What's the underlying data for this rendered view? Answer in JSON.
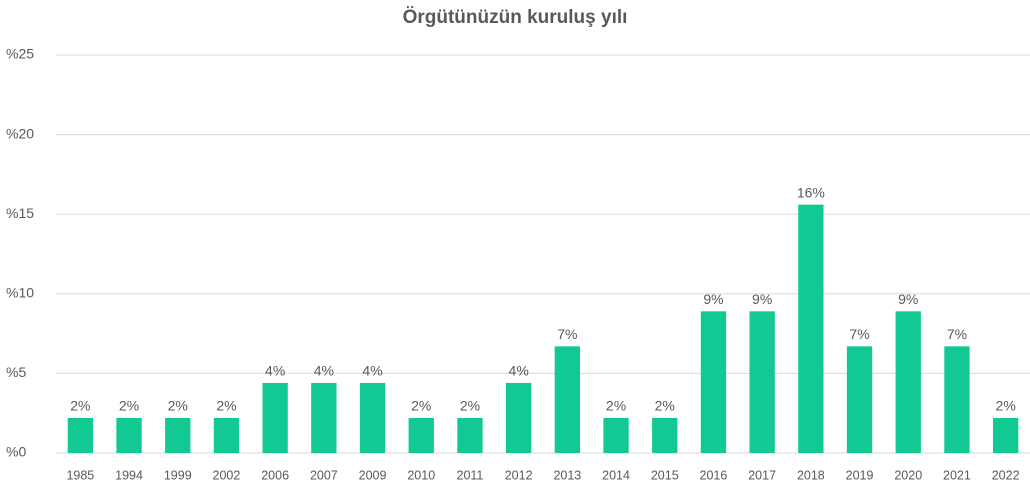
{
  "chart_data": {
    "type": "bar",
    "title": "Örgütünüzün kuruluş yılı",
    "categories": [
      "1985",
      "1994",
      "1999",
      "2002",
      "2006",
      "2007",
      "2009",
      "2010",
      "2011",
      "2012",
      "2013",
      "2014",
      "2015",
      "2016",
      "2017",
      "2018",
      "2019",
      "2020",
      "2021",
      "2022"
    ],
    "values": [
      2.2,
      2.2,
      2.2,
      2.2,
      4.4,
      4.4,
      4.4,
      2.2,
      2.2,
      4.4,
      6.7,
      2.2,
      2.2,
      8.9,
      8.9,
      15.6,
      6.7,
      8.9,
      6.7,
      2.2
    ],
    "value_labels": [
      "2%",
      "2%",
      "2%",
      "2%",
      "4%",
      "4%",
      "4%",
      "2%",
      "2%",
      "4%",
      "7%",
      "2%",
      "2%",
      "9%",
      "9%",
      "16%",
      "7%",
      "9%",
      "7%",
      "2%"
    ],
    "color": "#12c994",
    "ylim": [
      0,
      25
    ],
    "yticks": [
      {
        "value": 0,
        "label": "%0"
      },
      {
        "value": 5,
        "label": "%5"
      },
      {
        "value": 10,
        "label": "%10"
      },
      {
        "value": 15,
        "label": "%15"
      },
      {
        "value": 20,
        "label": "%20"
      },
      {
        "value": 25,
        "label": "%25"
      }
    ],
    "grid": true
  }
}
